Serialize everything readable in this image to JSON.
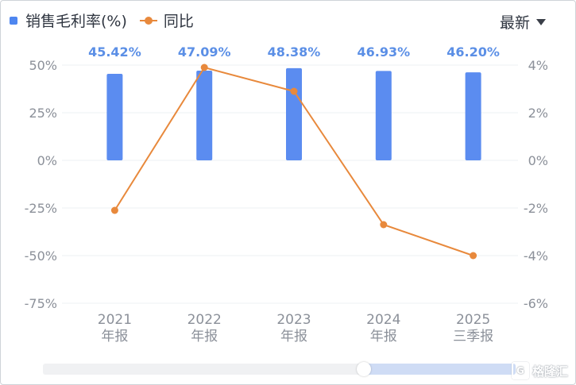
{
  "legend": {
    "bar_label": "销售毛利率(%)",
    "line_label": "同比"
  },
  "sort": {
    "label": "最新"
  },
  "watermark": {
    "text": "格隆汇",
    "logo_glyph": "G"
  },
  "colors": {
    "bar": "#5b8cf0",
    "line": "#e8893c",
    "label": "#5b8fe6"
  },
  "chart_data": {
    "type": "bar",
    "categories": [
      [
        "2021",
        "年报"
      ],
      [
        "2022",
        "年报"
      ],
      [
        "2023",
        "年报"
      ],
      [
        "2024",
        "年报"
      ],
      [
        "2025",
        "三季报"
      ]
    ],
    "series": [
      {
        "name": "销售毛利率(%)",
        "type": "bar",
        "axis": "left",
        "values": [
          45.42,
          47.09,
          48.38,
          46.93,
          46.2
        ],
        "labels": [
          "45.42%",
          "47.09%",
          "48.38%",
          "46.93%",
          "46.20%"
        ]
      },
      {
        "name": "同比",
        "type": "line",
        "axis": "right",
        "values": [
          -2.1,
          3.9,
          2.9,
          -2.7,
          -4.0
        ]
      }
    ],
    "left_axis": {
      "ticks": [
        50,
        25,
        0,
        -25,
        -50,
        -75
      ],
      "tick_labels": [
        "50%",
        "25%",
        "0%",
        "-25%",
        "-50%",
        "-75%"
      ],
      "ylim": [
        -75,
        50
      ]
    },
    "right_axis": {
      "ticks": [
        4,
        2,
        0,
        -2,
        -4,
        -6
      ],
      "tick_labels": [
        "4%",
        "2%",
        "0%",
        "-2%",
        "-4%",
        "-6%"
      ],
      "ylim": [
        -6,
        4
      ]
    },
    "grid": true,
    "legend_position": "top-left"
  }
}
